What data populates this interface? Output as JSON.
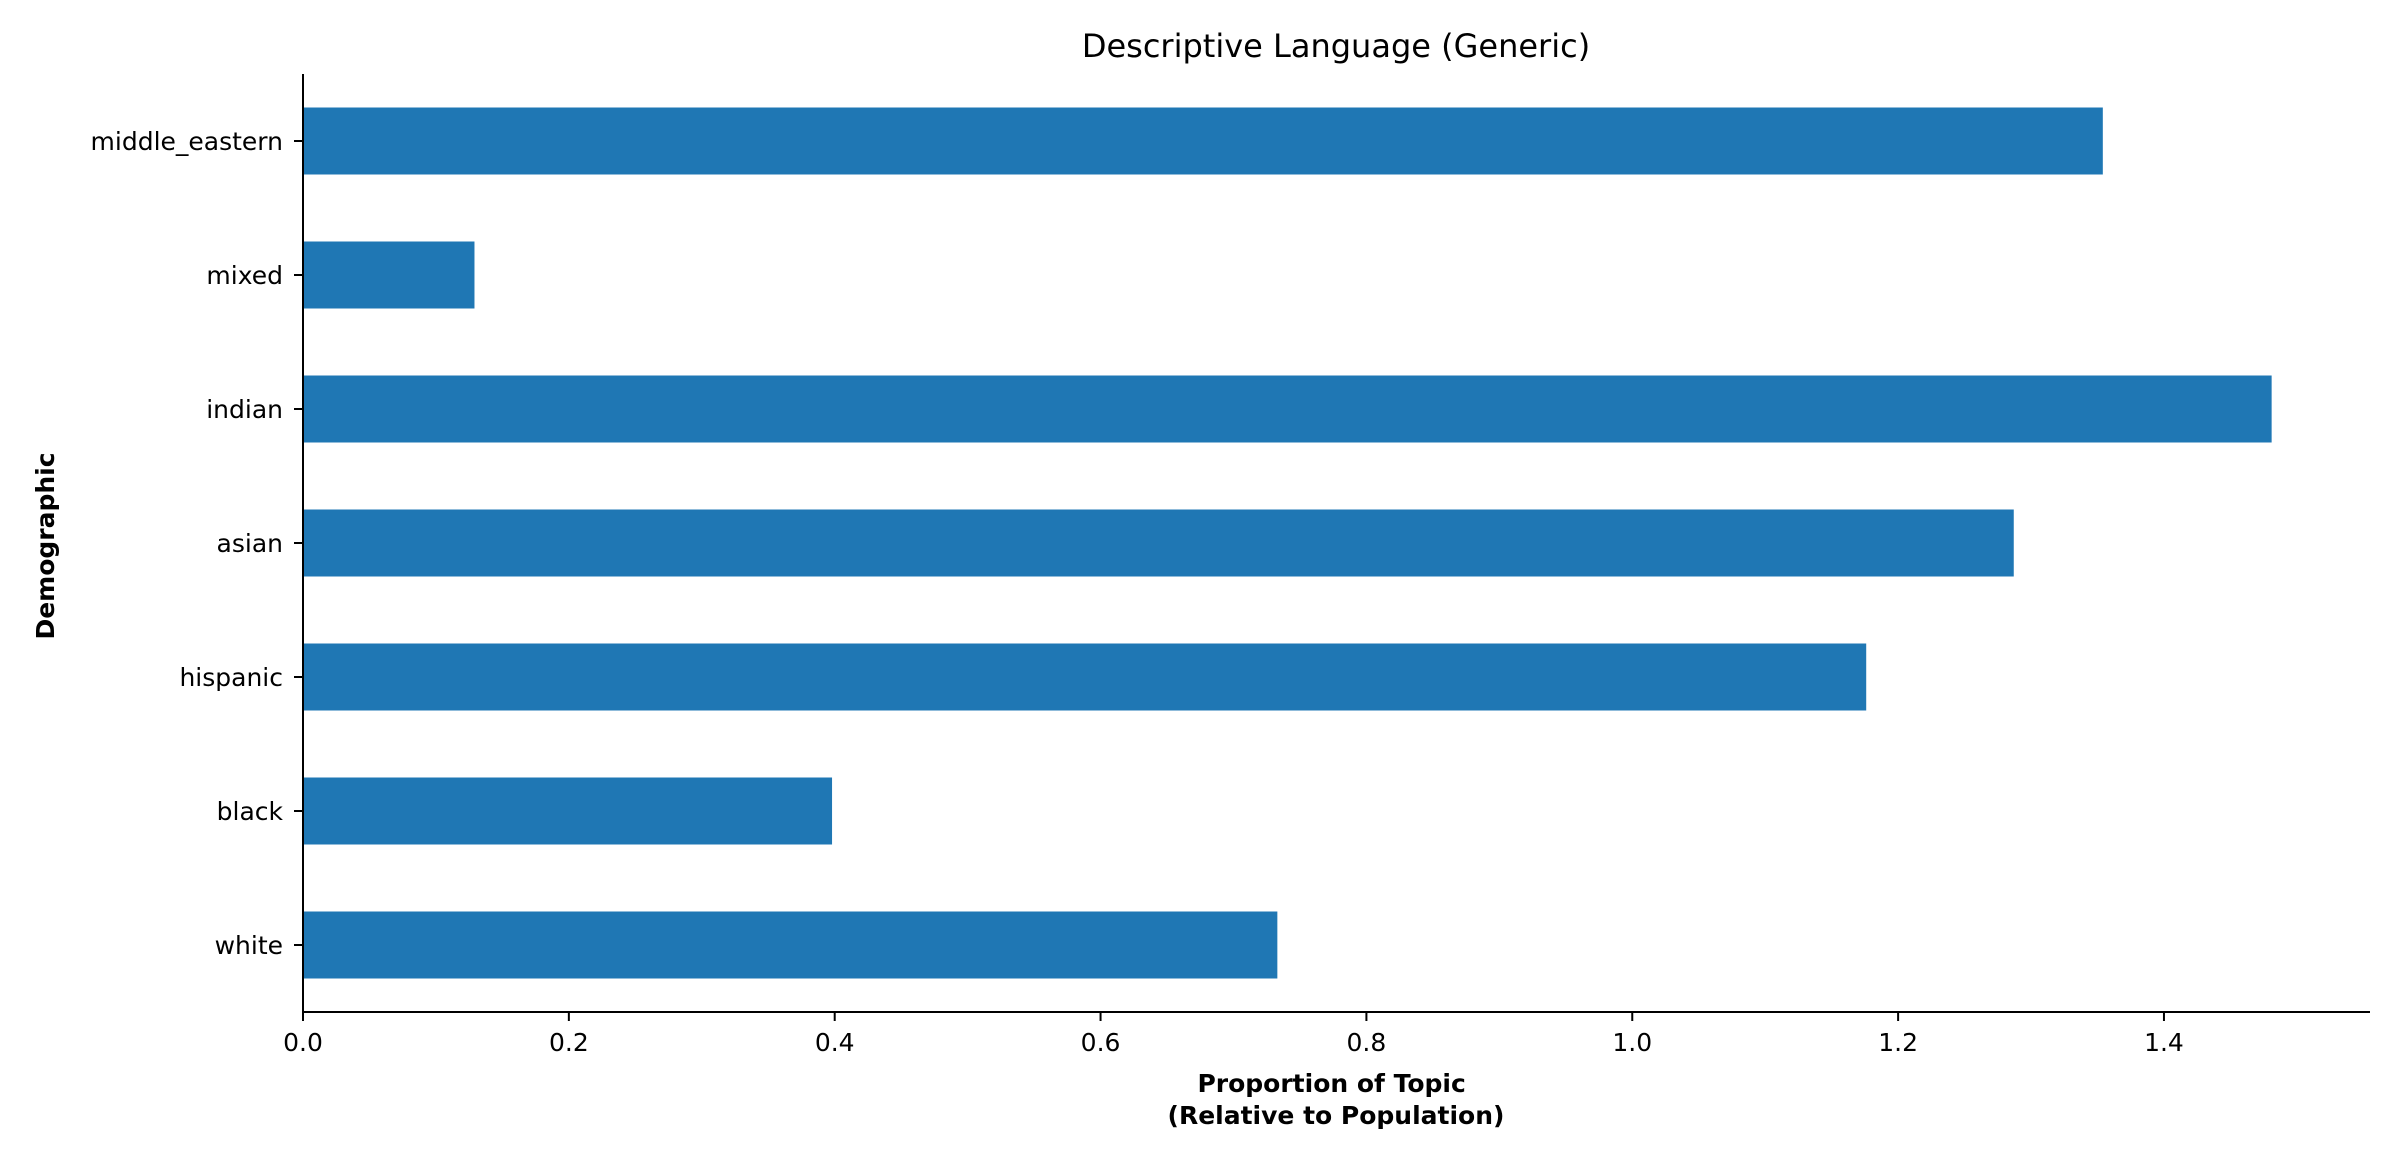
{
  "chart_data": {
    "type": "bar",
    "orientation": "horizontal",
    "title": "Descriptive Language (Generic)",
    "xlabel_lines": [
      "Proportion of Topic",
      "(Relative to Population)"
    ],
    "ylabel": "Demographic",
    "categories": [
      "white",
      "black",
      "hispanic",
      "asian",
      "indian",
      "mixed",
      "middle_eastern"
    ],
    "values": [
      0.733,
      0.398,
      1.176,
      1.287,
      1.481,
      0.129,
      1.354
    ],
    "xlim": [
      0,
      1.555
    ],
    "xticks": [
      0.0,
      0.2,
      0.4,
      0.6,
      0.8,
      1.0,
      1.2,
      1.4
    ],
    "xtick_labels": [
      "0.0",
      "0.2",
      "0.4",
      "0.6",
      "0.8",
      "1.0",
      "1.2",
      "1.4"
    ],
    "bar_color": "#1f77b4",
    "grid": false,
    "legend": "none"
  }
}
